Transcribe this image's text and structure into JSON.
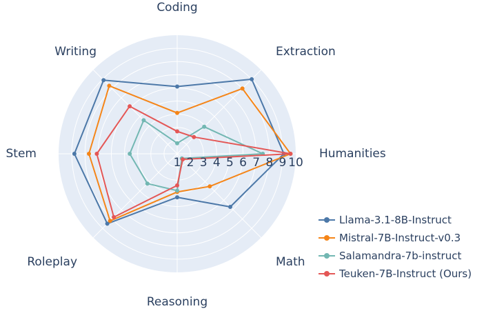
{
  "chart_data": {
    "type": "radar",
    "axes": [
      "Humanities",
      "Extraction",
      "Coding",
      "Writing",
      "Stem",
      "Roleplay",
      "Reasoning",
      "Math"
    ],
    "radial_ticks": [
      "1",
      "2",
      "3",
      "4",
      "5",
      "6",
      "7",
      "8",
      "9",
      "10"
    ],
    "rlim": [
      1,
      10
    ],
    "grid": true,
    "legend_position": "bottom-right",
    "series": [
      {
        "name": "Llama-3.1-8B-Instruct",
        "color": "#4c78a8",
        "values": [
          9.1,
          9.0,
          6.1,
          8.9,
          8.8,
          8.5,
          4.3,
          6.7
        ]
      },
      {
        "name": "Mistral-7B-Instruct-v0.3",
        "color": "#f58518",
        "values": [
          9.6,
          8.0,
          4.1,
          8.3,
          7.7,
          8.2,
          3.9,
          4.5
        ]
      },
      {
        "name": "Salamandra-7b-instruct",
        "color": "#72b7b2",
        "values": [
          7.5,
          3.9,
          1.8,
          4.6,
          4.6,
          4.2,
          3.8,
          1.5
        ]
      },
      {
        "name": "Teuken-7B-Instruct (Ours)",
        "color": "#e45756",
        "values": [
          9.6,
          2.8,
          2.7,
          6.1,
          7.1,
          7.8,
          3.4,
          1.6
        ]
      }
    ]
  }
}
